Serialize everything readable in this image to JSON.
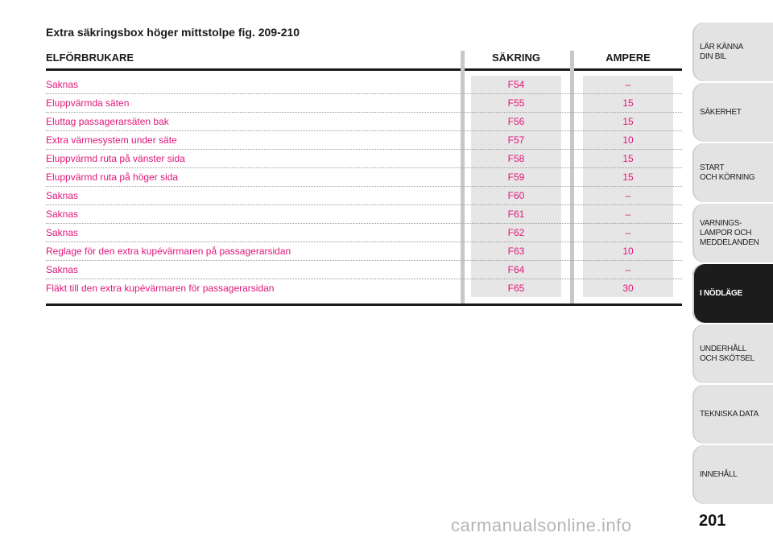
{
  "title": "Extra säkringsbox höger mittstolpe fig. 209-210",
  "table": {
    "headers": {
      "consumer": "ELFÖRBRUKARE",
      "fuse": "SÄKRING",
      "ampere": "AMPERE"
    },
    "rows": [
      {
        "consumer": "Saknas",
        "fuse": "F54",
        "ampere": "–"
      },
      {
        "consumer": "Eluppvärmda säten",
        "fuse": "F55",
        "ampere": "15"
      },
      {
        "consumer": "Eluttag passagerarsäten bak",
        "fuse": "F56",
        "ampere": "15"
      },
      {
        "consumer": "Extra värmesystem under säte",
        "fuse": "F57",
        "ampere": "10"
      },
      {
        "consumer": "Eluppvärmd ruta på vänster sida",
        "fuse": "F58",
        "ampere": "15"
      },
      {
        "consumer": "Eluppvärmd ruta på höger sida",
        "fuse": "F59",
        "ampere": "15"
      },
      {
        "consumer": "Saknas",
        "fuse": "F60",
        "ampere": "–"
      },
      {
        "consumer": "Saknas",
        "fuse": "F61",
        "ampere": "–"
      },
      {
        "consumer": "Saknas",
        "fuse": "F62",
        "ampere": "–"
      },
      {
        "consumer": "Reglage för den extra kupévärmaren på passagerarsidan",
        "fuse": "F63",
        "ampere": "10"
      },
      {
        "consumer": "Saknas",
        "fuse": "F64",
        "ampere": "–"
      },
      {
        "consumer": "Fläkt till den extra kupévärmaren för passagerarsidan",
        "fuse": "F65",
        "ampere": "30"
      }
    ]
  },
  "tabs": [
    {
      "label": "LÄR KÄNNA\nDIN BIL",
      "active": false
    },
    {
      "label": "SÄKERHET",
      "active": false
    },
    {
      "label": "START\nOCH KÖRNING",
      "active": false
    },
    {
      "label": "VARNINGS-\nLAMPOR OCH\nMEDDELANDEN",
      "active": false
    },
    {
      "label": "I NÖDLÄGE",
      "active": true
    },
    {
      "label": "UNDERHÅLL\nOCH SKÖTSEL",
      "active": false
    },
    {
      "label": "TEKNISKA DATA",
      "active": false
    },
    {
      "label": "INNEHÅLL",
      "active": false
    }
  ],
  "page_number": "201",
  "watermark": "carmanualsonline.info",
  "colors": {
    "text_accent": "#e0167a",
    "active_tab": "#1c1c1c",
    "tab": "#e3e3e3"
  }
}
